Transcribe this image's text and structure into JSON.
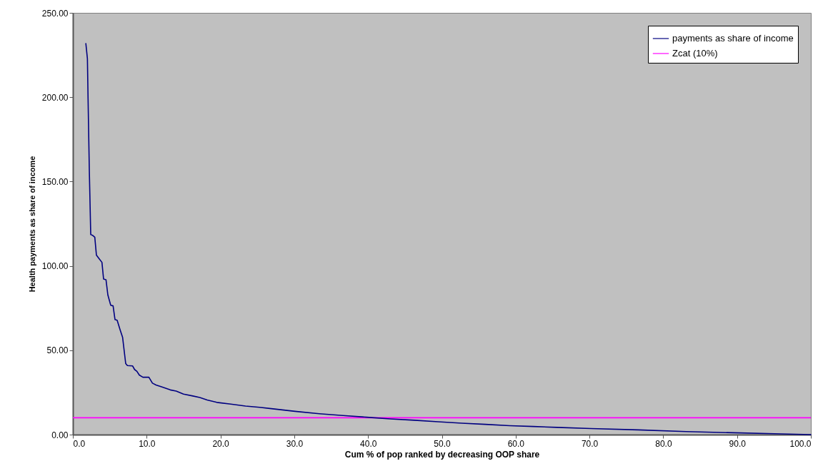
{
  "chart_data": {
    "type": "line",
    "xlabel": "Cum % of pop ranked by decreasing OOP share",
    "ylabel": "Health payments as share of income",
    "xlim": [
      0,
      100
    ],
    "xticks": [
      {
        "value": 0,
        "label": "0.0"
      },
      {
        "value": 10,
        "label": "10.0"
      },
      {
        "value": 20,
        "label": "20.0"
      },
      {
        "value": 30,
        "label": "30.0"
      },
      {
        "value": 40,
        "label": "40.0"
      },
      {
        "value": 50,
        "label": "50.0"
      },
      {
        "value": 60,
        "label": "60.0"
      },
      {
        "value": 70,
        "label": "70.0"
      },
      {
        "value": 80,
        "label": "80.0"
      },
      {
        "value": 90,
        "label": "90.0"
      },
      {
        "value": 100,
        "label": "100.0"
      }
    ],
    "ylim": [
      0,
      250
    ],
    "yticks": [
      {
        "value": 0,
        "label": "0.00"
      },
      {
        "value": 50,
        "label": "50.00"
      },
      {
        "value": 100,
        "label": "100.00"
      },
      {
        "value": 150,
        "label": "150.00"
      },
      {
        "value": 200,
        "label": "200.00"
      },
      {
        "value": 250,
        "label": "250.00"
      }
    ],
    "series": [
      {
        "name": "payments as share of income",
        "color": "#000080",
        "x": [
          1.76,
          1.97,
          2.06,
          2.23,
          2.42,
          2.71,
          2.97,
          3.19,
          3.52,
          3.94,
          4.16,
          4.49,
          4.74,
          5.13,
          5.45,
          5.71,
          6.0,
          6.42,
          6.74,
          7.16,
          7.39,
          8.1,
          8.36,
          8.68,
          9.0,
          9.49,
          10.3,
          10.78,
          11.27,
          12.08,
          13.2,
          14.0,
          15.0,
          16.26,
          17.2,
          18.2,
          19.5,
          21.4,
          23.4,
          25.3,
          26.9,
          30.1,
          33.4,
          36.6,
          39.8,
          43.0,
          46.3,
          49.5,
          52.7,
          55.9,
          59.2,
          62.4,
          65.6,
          70.2,
          76.6,
          83.1,
          89.5,
          96.0,
          100
        ],
        "values": [
          231.8,
          222.9,
          198.9,
          156.5,
          118.6,
          118.0,
          117.0,
          106.4,
          104.5,
          102.1,
          92.2,
          91.8,
          82.8,
          76.7,
          76.3,
          68.2,
          67.8,
          61.9,
          57.6,
          42.1,
          40.9,
          40.7,
          38.6,
          37.5,
          35.3,
          34.0,
          34.0,
          30.5,
          29.4,
          28.2,
          26.5,
          25.8,
          24.0,
          22.9,
          22.0,
          20.5,
          19.1,
          18.1,
          16.9,
          16.2,
          15.4,
          13.8,
          12.4,
          11.3,
          10.3,
          9.3,
          8.5,
          7.6,
          6.8,
          6.1,
          5.3,
          4.8,
          4.3,
          3.6,
          2.8,
          1.8,
          1.1,
          0.4,
          0.0
        ]
      }
    ],
    "ref_lines": [
      {
        "axis": "y",
        "value": 10,
        "label": "Zcat (10%)",
        "color": "#ff00ff"
      }
    ],
    "legend": "top right",
    "grid": false
  }
}
